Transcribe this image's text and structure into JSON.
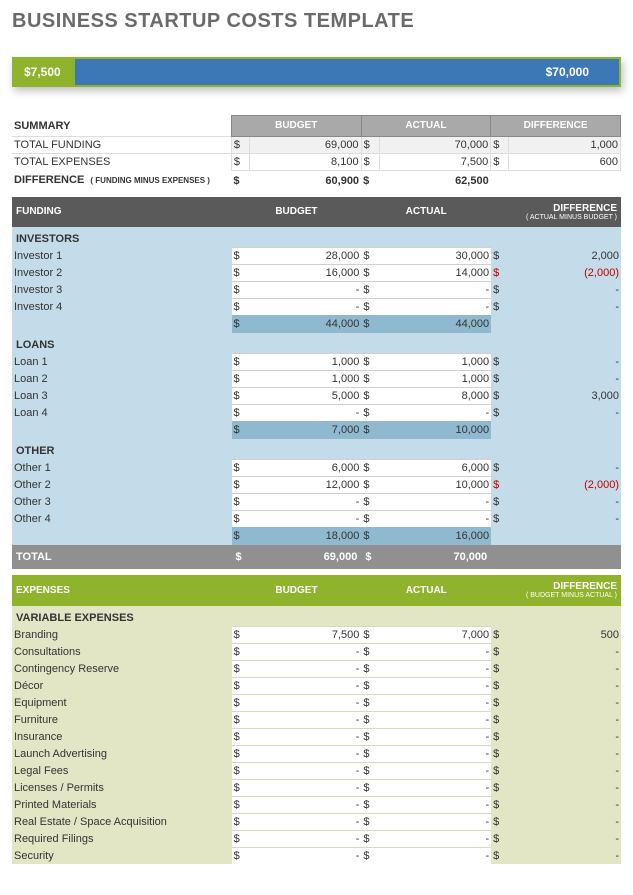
{
  "title": "BUSINESS STARTUP COSTS TEMPLATE",
  "bar": {
    "left_width_pct": 10,
    "left_label": "$7,500",
    "right_label": "$70,000",
    "border_color": "#8fb32c",
    "left_bg": "#8fb32c",
    "right_bg": "#3b78b5"
  },
  "summary": {
    "header_label": "SUMMARY",
    "col_budget": "BUDGET",
    "col_actual": "ACTUAL",
    "col_diff": "DIFFERENCE",
    "rows": [
      {
        "label": "TOTAL FUNDING",
        "budget": "69,000",
        "actual": "70,000",
        "diff": "1,000"
      },
      {
        "label": "TOTAL EXPENSES",
        "budget": "8,100",
        "actual": "7,500",
        "diff": "600"
      }
    ],
    "diff_label": "DIFFERENCE",
    "diff_sub": "( FUNDING MINUS EXPENSES )",
    "diff_budget": "60,900",
    "diff_actual": "62,500"
  },
  "funding": {
    "section_label": "FUNDING",
    "col_budget": "BUDGET",
    "col_actual": "ACTUAL",
    "col_diff": "DIFFERENCE",
    "col_diff_sub": "( ACTUAL MINUS BUDGET )",
    "groups": [
      {
        "name": "INVESTORS",
        "rows": [
          {
            "label": "Investor 1",
            "budget": "28,000",
            "actual": "30,000",
            "diff": "2,000",
            "neg": false
          },
          {
            "label": "Investor 2",
            "budget": "16,000",
            "actual": "14,000",
            "diff": "(2,000)",
            "neg": true
          },
          {
            "label": "Investor 3",
            "budget": "-",
            "actual": "-",
            "diff": "-",
            "neg": false
          },
          {
            "label": "Investor 4",
            "budget": "-",
            "actual": "-",
            "diff": "-",
            "neg": false
          }
        ],
        "sub_budget": "44,000",
        "sub_actual": "44,000"
      },
      {
        "name": "LOANS",
        "rows": [
          {
            "label": "Loan 1",
            "budget": "1,000",
            "actual": "1,000",
            "diff": "-",
            "neg": false
          },
          {
            "label": "Loan 2",
            "budget": "1,000",
            "actual": "1,000",
            "diff": "-",
            "neg": false
          },
          {
            "label": "Loan 3",
            "budget": "5,000",
            "actual": "8,000",
            "diff": "3,000",
            "neg": false
          },
          {
            "label": "Loan 4",
            "budget": "-",
            "actual": "-",
            "diff": "-",
            "neg": false
          }
        ],
        "sub_budget": "7,000",
        "sub_actual": "10,000"
      },
      {
        "name": "OTHER",
        "rows": [
          {
            "label": "Other 1",
            "budget": "6,000",
            "actual": "6,000",
            "diff": "-",
            "neg": false
          },
          {
            "label": "Other 2",
            "budget": "12,000",
            "actual": "10,000",
            "diff": "(2,000)",
            "neg": true
          },
          {
            "label": "Other 3",
            "budget": "-",
            "actual": "-",
            "diff": "-",
            "neg": false
          },
          {
            "label": "Other 4",
            "budget": "-",
            "actual": "-",
            "diff": "-",
            "neg": false
          }
        ],
        "sub_budget": "18,000",
        "sub_actual": "16,000"
      }
    ],
    "total_label": "TOTAL",
    "total_budget": "69,000",
    "total_actual": "70,000"
  },
  "expenses": {
    "section_label": "EXPENSES",
    "col_budget": "BUDGET",
    "col_actual": "ACTUAL",
    "col_diff": "DIFFERENCE",
    "col_diff_sub": "( BUDGET MINUS ACTUAL )",
    "group_name": "VARIABLE EXPENSES",
    "rows": [
      {
        "label": "Branding",
        "budget": "7,500",
        "actual": "7,000",
        "diff": "500"
      },
      {
        "label": "Consultations",
        "budget": "-",
        "actual": "-",
        "diff": "-"
      },
      {
        "label": "Contingency Reserve",
        "budget": "-",
        "actual": "-",
        "diff": "-"
      },
      {
        "label": "Décor",
        "budget": "-",
        "actual": "-",
        "diff": "-"
      },
      {
        "label": "Equipment",
        "budget": "-",
        "actual": "-",
        "diff": "-"
      },
      {
        "label": "Furniture",
        "budget": "-",
        "actual": "-",
        "diff": "-"
      },
      {
        "label": "Insurance",
        "budget": "-",
        "actual": "-",
        "diff": "-"
      },
      {
        "label": "Launch Advertising",
        "budget": "-",
        "actual": "-",
        "diff": "-"
      },
      {
        "label": "Legal Fees",
        "budget": "-",
        "actual": "-",
        "diff": "-"
      },
      {
        "label": "Licenses / Permits",
        "budget": "-",
        "actual": "-",
        "diff": "-"
      },
      {
        "label": "Printed Materials",
        "budget": "-",
        "actual": "-",
        "diff": "-"
      },
      {
        "label": "Real Estate / Space Acquisition",
        "budget": "-",
        "actual": "-",
        "diff": "-"
      },
      {
        "label": "Required Filings",
        "budget": "-",
        "actual": "-",
        "diff": "-"
      },
      {
        "label": "Security",
        "budget": "-",
        "actual": "-",
        "diff": "-"
      }
    ]
  },
  "currency": "$",
  "colors": {
    "dark_header": "#5a5a5a",
    "blue_body": "#c4dce9",
    "blue_subtotal": "#8fb9cf",
    "grey_total": "#909090",
    "green_header": "#8fb32c",
    "green_body": "#e3e6c4",
    "negative": "#c00000"
  }
}
